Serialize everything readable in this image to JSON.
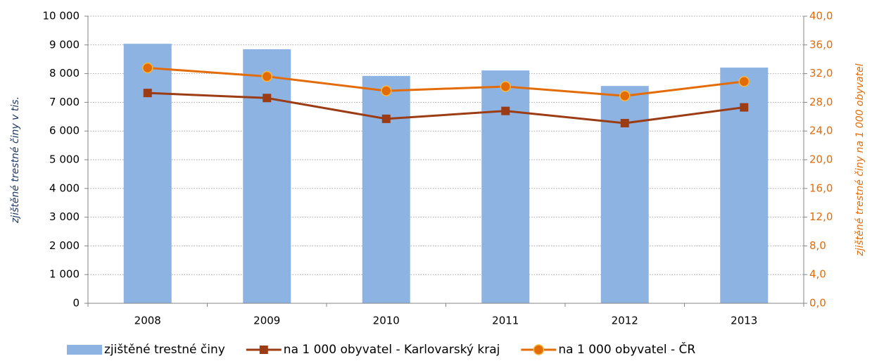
{
  "chart_data": {
    "type": "bar",
    "categories": [
      "2008",
      "2009",
      "2010",
      "2011",
      "2012",
      "2013"
    ],
    "series": [
      {
        "name": "zjištěné trestné činy",
        "type": "bar",
        "color": "#8db3e2",
        "values": [
          9040,
          8850,
          7920,
          8110,
          7570,
          8210
        ]
      },
      {
        "name": "na 1 000 obyvatel - Karlovarský kraj",
        "type": "line",
        "axis": "y2",
        "marker": "square",
        "color": "#9c3c14",
        "values": [
          29.3,
          28.6,
          25.7,
          26.8,
          25.1,
          27.3
        ]
      },
      {
        "name": "na 1 000 obyvatel - ČR",
        "type": "line",
        "axis": "y2",
        "marker": "circle",
        "color": "#e36c09",
        "values": [
          32.8,
          31.6,
          29.6,
          30.2,
          28.9,
          30.9
        ]
      }
    ],
    "ylabel": "zjištěné trestné činy v tis.",
    "y2label": "zjištěné trestné činy na 1 000 obyvatel",
    "ylim": [
      0,
      10000
    ],
    "yticks": [
      0,
      {
        "value": 1000,
        "label": "1 000"
      },
      {
        "value": 2000,
        "label": "2 000"
      },
      {
        "value": 3000,
        "label": "3 000"
      },
      {
        "value": 4000,
        "label": "4 000"
      },
      {
        "value": 5000,
        "label": "5 000"
      },
      {
        "value": 6000,
        "label": "6 000"
      },
      {
        "value": 7000,
        "label": "7 000"
      },
      {
        "value": 8000,
        "label": "8 000"
      },
      {
        "value": 9000,
        "label": "9 000"
      },
      {
        "value": 10000,
        "label": "10 000"
      }
    ],
    "y2lim": [
      0,
      40
    ],
    "y2ticks": [
      {
        "value": 0,
        "label": "0,0"
      },
      {
        "value": 4,
        "label": "4,0"
      },
      {
        "value": 8,
        "label": "8,0"
      },
      {
        "value": 12,
        "label": "12,0"
      },
      {
        "value": 16,
        "label": "16,0"
      },
      {
        "value": 20,
        "label": "20,0"
      },
      {
        "value": 24,
        "label": "24,0"
      },
      {
        "value": 28,
        "label": "28,0"
      },
      {
        "value": 32,
        "label": "32,0"
      },
      {
        "value": 36,
        "label": "36,0"
      },
      {
        "value": 40,
        "label": "40,0"
      }
    ],
    "grid": true,
    "legend": "bottom"
  }
}
